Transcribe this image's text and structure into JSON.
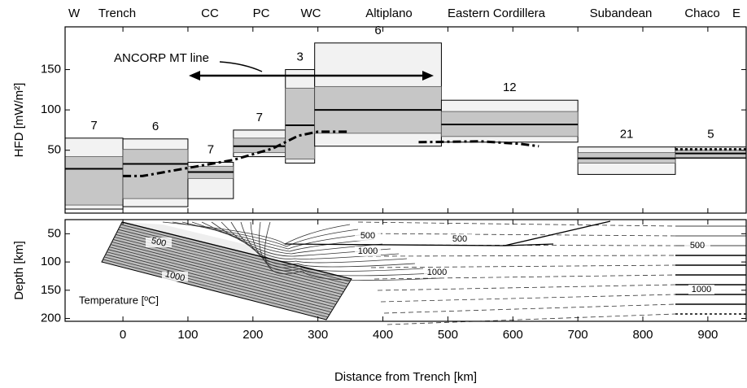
{
  "chart_data": [
    {
      "type": "box",
      "regions": [
        "W",
        "Trench",
        "CC",
        "PC",
        "WC",
        "Altiplano",
        "Eastern Cordillera",
        "Subandean",
        "Chaco",
        "E"
      ],
      "ylabel": "HFD [mW/m²]",
      "annotation": "ANCORP MT line",
      "xlim": [
        -89,
        959
      ],
      "ylim": [
        -28,
        203
      ],
      "yticks": [
        50,
        100,
        150
      ],
      "boxes": [
        {
          "x": [
            -89,
            0
          ],
          "min": -23,
          "q1": -18,
          "median": 27,
          "q3": 42,
          "max": 65,
          "n": 7
        },
        {
          "x": [
            0,
            100
          ],
          "min": -20,
          "q1": -10,
          "median": 33,
          "q3": 51,
          "max": 64,
          "n": 6
        },
        {
          "x": [
            100,
            170
          ],
          "min": -10,
          "q1": 15,
          "median": 23,
          "q3": 30,
          "max": 35,
          "n": 7
        },
        {
          "x": [
            170,
            250
          ],
          "min": 42,
          "q1": 47,
          "median": 55,
          "q3": 65,
          "max": 75,
          "n": 7
        },
        {
          "x": [
            250,
            295
          ],
          "min": 34,
          "q1": 39,
          "median": 81,
          "q3": 127,
          "max": 150,
          "n": 3
        },
        {
          "x": [
            295,
            490
          ],
          "min": 55,
          "q1": 71,
          "median": 100,
          "q3": 129,
          "max": 183,
          "n": 6
        },
        {
          "x": [
            490,
            700
          ],
          "min": 60,
          "q1": 67,
          "median": 82,
          "q3": 98,
          "max": 112,
          "n": 12
        },
        {
          "x": [
            700,
            850
          ],
          "min": 20,
          "q1": 34,
          "median": 40,
          "q3": 47,
          "max": 54,
          "n": 21
        },
        {
          "x": [
            850,
            959
          ],
          "min": 40,
          "q1": 41,
          "median": 46,
          "q3": 50,
          "max": 54,
          "n": 5
        }
      ],
      "lines": [
        {
          "x": [
            0,
            30,
            100,
            170,
            230,
            270,
            300,
            345
          ],
          "values": [
            18,
            18,
            28,
            38,
            52,
            68,
            73,
            73
          ],
          "style": "dashdot"
        },
        {
          "x": [
            455,
            550,
            610,
            640
          ],
          "values": [
            60,
            61,
            58,
            55
          ],
          "style": "dashdot"
        },
        {
          "x": [
            850,
            959
          ],
          "values": [
            51,
            51
          ],
          "style": "dotted"
        }
      ]
    },
    {
      "type": "contour",
      "xlabel": "Distance from Trench [km]",
      "ylabel": "Depth [km]",
      "annotation": "Temperature [ºC]",
      "xlim": [
        -89,
        959
      ],
      "ylim": [
        25,
        205
      ],
      "xticks": [
        0,
        100,
        200,
        300,
        400,
        500,
        600,
        700,
        800,
        900
      ],
      "yticks": [
        50,
        100,
        150,
        200
      ],
      "contour_labels": [
        500,
        1000,
        500,
        1000,
        500,
        1000,
        500,
        1000
      ]
    }
  ]
}
